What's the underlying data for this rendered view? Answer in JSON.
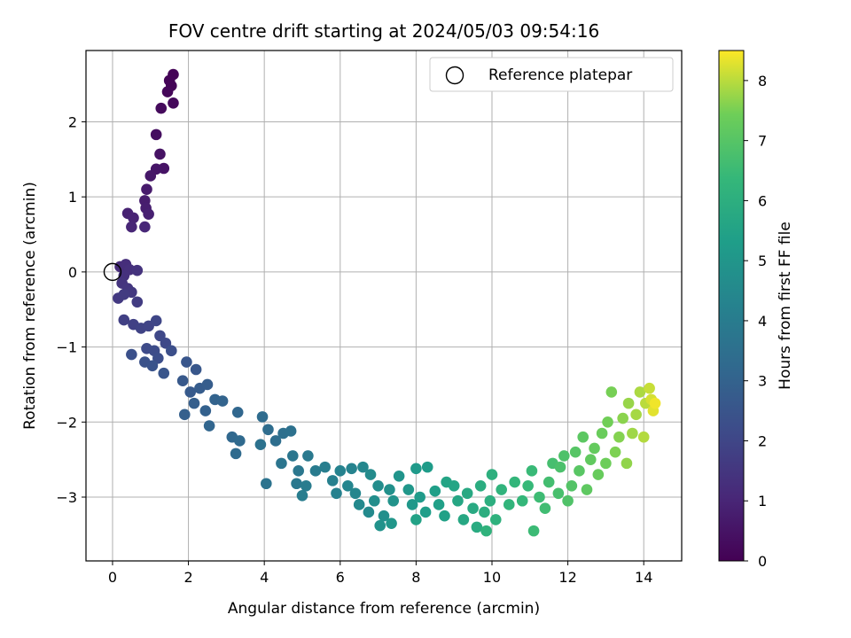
{
  "chart_data": {
    "type": "scatter",
    "title": "FOV centre drift starting at 2024/05/03 09:54:16",
    "xlabel": "Angular distance from reference (arcmin)",
    "ylabel": "Rotation from reference (arcmin)",
    "xlim": [
      -0.7,
      15.0
    ],
    "ylim": [
      -3.85,
      2.95
    ],
    "xticks": [
      0,
      2,
      4,
      6,
      8,
      10,
      12,
      14
    ],
    "yticks": [
      -3,
      -2,
      -1,
      0,
      1,
      2
    ],
    "grid": true,
    "legend": {
      "location": "top-right",
      "entries": [
        {
          "label": "Reference platepar",
          "marker": "open-circle"
        }
      ]
    },
    "reference_point": {
      "x": 0,
      "y": 0
    },
    "colorbar": {
      "label": "Hours from first FF file",
      "colormap": "viridis",
      "range": [
        0,
        8.5
      ],
      "ticks": [
        0,
        1,
        2,
        3,
        4,
        5,
        6,
        7,
        8
      ]
    },
    "series": [
      {
        "color_by": "hours",
        "points": [
          [
            1.6,
            2.63,
            0.05
          ],
          [
            1.5,
            2.55,
            0.08
          ],
          [
            1.55,
            2.48,
            0.1
          ],
          [
            1.45,
            2.4,
            0.15
          ],
          [
            1.6,
            2.25,
            0.2
          ],
          [
            1.28,
            2.18,
            0.25
          ],
          [
            1.15,
            1.83,
            0.35
          ],
          [
            1.25,
            1.57,
            0.45
          ],
          [
            1.35,
            1.38,
            0.5
          ],
          [
            1.15,
            1.37,
            0.55
          ],
          [
            1.0,
            1.28,
            0.6
          ],
          [
            0.9,
            1.1,
            0.7
          ],
          [
            0.85,
            0.95,
            0.75
          ],
          [
            0.88,
            0.85,
            0.8
          ],
          [
            0.95,
            0.77,
            0.85
          ],
          [
            0.4,
            0.78,
            0.9
          ],
          [
            0.55,
            0.72,
            0.95
          ],
          [
            0.5,
            0.6,
            1.0
          ],
          [
            0.85,
            0.6,
            1.05
          ],
          [
            0.2,
            0.07,
            1.2
          ],
          [
            0.35,
            0.1,
            1.25
          ],
          [
            0.45,
            0.03,
            1.3
          ],
          [
            0.3,
            -0.05,
            1.35
          ],
          [
            0.65,
            0.02,
            1.4
          ],
          [
            0.25,
            -0.15,
            1.45
          ],
          [
            0.4,
            -0.22,
            1.5
          ],
          [
            0.5,
            -0.27,
            1.55
          ],
          [
            0.15,
            -0.35,
            1.6
          ],
          [
            0.3,
            -0.3,
            1.65
          ],
          [
            0.65,
            -0.4,
            1.7
          ],
          [
            0.3,
            -0.64,
            1.8
          ],
          [
            0.55,
            -0.7,
            1.85
          ],
          [
            0.75,
            -0.75,
            1.9
          ],
          [
            0.95,
            -0.72,
            1.95
          ],
          [
            1.15,
            -0.65,
            2.0
          ],
          [
            1.25,
            -0.85,
            2.05
          ],
          [
            1.4,
            -0.95,
            2.1
          ],
          [
            0.9,
            -1.02,
            2.15
          ],
          [
            1.1,
            -1.05,
            2.2
          ],
          [
            1.2,
            -1.15,
            2.25
          ],
          [
            1.55,
            -1.05,
            2.3
          ],
          [
            0.5,
            -1.1,
            2.35
          ],
          [
            0.85,
            -1.2,
            2.4
          ],
          [
            1.05,
            -1.25,
            2.45
          ],
          [
            1.35,
            -1.35,
            2.5
          ],
          [
            1.95,
            -1.2,
            2.55
          ],
          [
            2.2,
            -1.3,
            2.6
          ],
          [
            1.85,
            -1.45,
            2.65
          ],
          [
            2.05,
            -1.6,
            2.7
          ],
          [
            2.3,
            -1.55,
            2.75
          ],
          [
            2.5,
            -1.5,
            2.8
          ],
          [
            2.15,
            -1.75,
            2.85
          ],
          [
            1.9,
            -1.9,
            2.9
          ],
          [
            2.45,
            -1.85,
            2.95
          ],
          [
            2.7,
            -1.7,
            3.0
          ],
          [
            2.9,
            -1.72,
            3.05
          ],
          [
            2.55,
            -2.05,
            3.1
          ],
          [
            3.3,
            -1.87,
            3.15
          ],
          [
            3.15,
            -2.2,
            3.2
          ],
          [
            3.35,
            -2.25,
            3.25
          ],
          [
            3.25,
            -2.42,
            3.3
          ],
          [
            3.95,
            -1.93,
            3.35
          ],
          [
            4.1,
            -2.1,
            3.4
          ],
          [
            4.3,
            -2.25,
            3.45
          ],
          [
            4.5,
            -2.15,
            3.5
          ],
          [
            4.7,
            -2.12,
            3.55
          ],
          [
            3.9,
            -2.3,
            3.6
          ],
          [
            4.05,
            -2.82,
            3.65
          ],
          [
            4.45,
            -2.55,
            3.7
          ],
          [
            4.75,
            -2.45,
            3.75
          ],
          [
            4.9,
            -2.65,
            3.8
          ],
          [
            4.85,
            -2.82,
            3.85
          ],
          [
            5.15,
            -2.45,
            3.9
          ],
          [
            5.35,
            -2.65,
            3.95
          ],
          [
            5.1,
            -2.85,
            4.0
          ],
          [
            5.0,
            -2.98,
            4.05
          ],
          [
            5.6,
            -2.6,
            4.1
          ],
          [
            5.8,
            -2.78,
            4.15
          ],
          [
            5.9,
            -2.95,
            4.2
          ],
          [
            6.0,
            -2.65,
            4.25
          ],
          [
            6.3,
            -2.62,
            4.3
          ],
          [
            6.2,
            -2.85,
            4.35
          ],
          [
            6.4,
            -2.95,
            4.4
          ],
          [
            6.6,
            -2.6,
            4.45
          ],
          [
            6.5,
            -3.1,
            4.5
          ],
          [
            6.75,
            -3.2,
            4.55
          ],
          [
            6.8,
            -2.7,
            4.6
          ],
          [
            7.0,
            -2.85,
            4.65
          ],
          [
            6.9,
            -3.05,
            4.7
          ],
          [
            7.15,
            -3.25,
            4.75
          ],
          [
            7.3,
            -2.9,
            4.8
          ],
          [
            7.05,
            -3.38,
            4.85
          ],
          [
            7.4,
            -3.05,
            4.9
          ],
          [
            7.55,
            -2.72,
            4.95
          ],
          [
            7.35,
            -3.35,
            5.0
          ],
          [
            7.8,
            -2.9,
            5.05
          ],
          [
            7.9,
            -3.1,
            5.1
          ],
          [
            8.0,
            -2.62,
            5.15
          ],
          [
            8.1,
            -3.0,
            5.2
          ],
          [
            8.3,
            -2.6,
            5.25
          ],
          [
            8.25,
            -3.2,
            5.3
          ],
          [
            8.5,
            -2.92,
            5.35
          ],
          [
            8.6,
            -3.1,
            5.4
          ],
          [
            8.75,
            -3.25,
            5.45
          ],
          [
            8.0,
            -3.3,
            5.5
          ],
          [
            8.8,
            -2.8,
            5.55
          ],
          [
            9.0,
            -2.85,
            5.6
          ],
          [
            9.1,
            -3.05,
            5.65
          ],
          [
            9.25,
            -3.3,
            5.7
          ],
          [
            9.35,
            -2.95,
            5.75
          ],
          [
            9.5,
            -3.15,
            5.8
          ],
          [
            9.6,
            -3.4,
            5.85
          ],
          [
            9.7,
            -2.85,
            5.9
          ],
          [
            9.8,
            -3.2,
            5.95
          ],
          [
            9.95,
            -3.05,
            6.0
          ],
          [
            10.0,
            -2.7,
            6.05
          ],
          [
            10.1,
            -3.3,
            6.1
          ],
          [
            9.85,
            -3.45,
            6.15
          ],
          [
            10.25,
            -2.9,
            6.2
          ],
          [
            10.45,
            -3.1,
            6.25
          ],
          [
            10.6,
            -2.8,
            6.3
          ],
          [
            10.8,
            -3.05,
            6.35
          ],
          [
            10.95,
            -2.85,
            6.4
          ],
          [
            11.05,
            -2.65,
            6.45
          ],
          [
            11.1,
            -3.45,
            6.5
          ],
          [
            11.25,
            -3.0,
            6.55
          ],
          [
            11.4,
            -3.15,
            6.6
          ],
          [
            11.5,
            -2.8,
            6.65
          ],
          [
            11.6,
            -2.55,
            6.7
          ],
          [
            11.75,
            -2.95,
            6.75
          ],
          [
            11.8,
            -2.6,
            6.8
          ],
          [
            11.9,
            -2.45,
            6.85
          ],
          [
            12.0,
            -3.05,
            6.9
          ],
          [
            12.1,
            -2.85,
            6.95
          ],
          [
            12.2,
            -2.4,
            7.0
          ],
          [
            12.3,
            -2.65,
            7.05
          ],
          [
            12.4,
            -2.2,
            7.1
          ],
          [
            12.5,
            -2.9,
            7.15
          ],
          [
            12.6,
            -2.5,
            7.2
          ],
          [
            12.7,
            -2.35,
            7.25
          ],
          [
            12.8,
            -2.7,
            7.3
          ],
          [
            12.9,
            -2.15,
            7.35
          ],
          [
            13.0,
            -2.55,
            7.4
          ],
          [
            13.05,
            -2.0,
            7.45
          ],
          [
            13.15,
            -1.6,
            7.5
          ],
          [
            13.25,
            -2.4,
            7.55
          ],
          [
            13.35,
            -2.2,
            7.6
          ],
          [
            13.45,
            -1.95,
            7.65
          ],
          [
            13.55,
            -2.55,
            7.7
          ],
          [
            13.6,
            -1.75,
            7.75
          ],
          [
            13.7,
            -2.15,
            7.8
          ],
          [
            13.8,
            -1.9,
            7.85
          ],
          [
            13.9,
            -1.6,
            7.9
          ],
          [
            14.0,
            -2.2,
            7.95
          ],
          [
            14.05,
            -1.75,
            8.0
          ],
          [
            14.15,
            -1.55,
            8.1
          ],
          [
            14.2,
            -1.7,
            8.2
          ],
          [
            14.25,
            -1.85,
            8.3
          ],
          [
            14.3,
            -1.75,
            8.4
          ]
        ]
      }
    ]
  }
}
